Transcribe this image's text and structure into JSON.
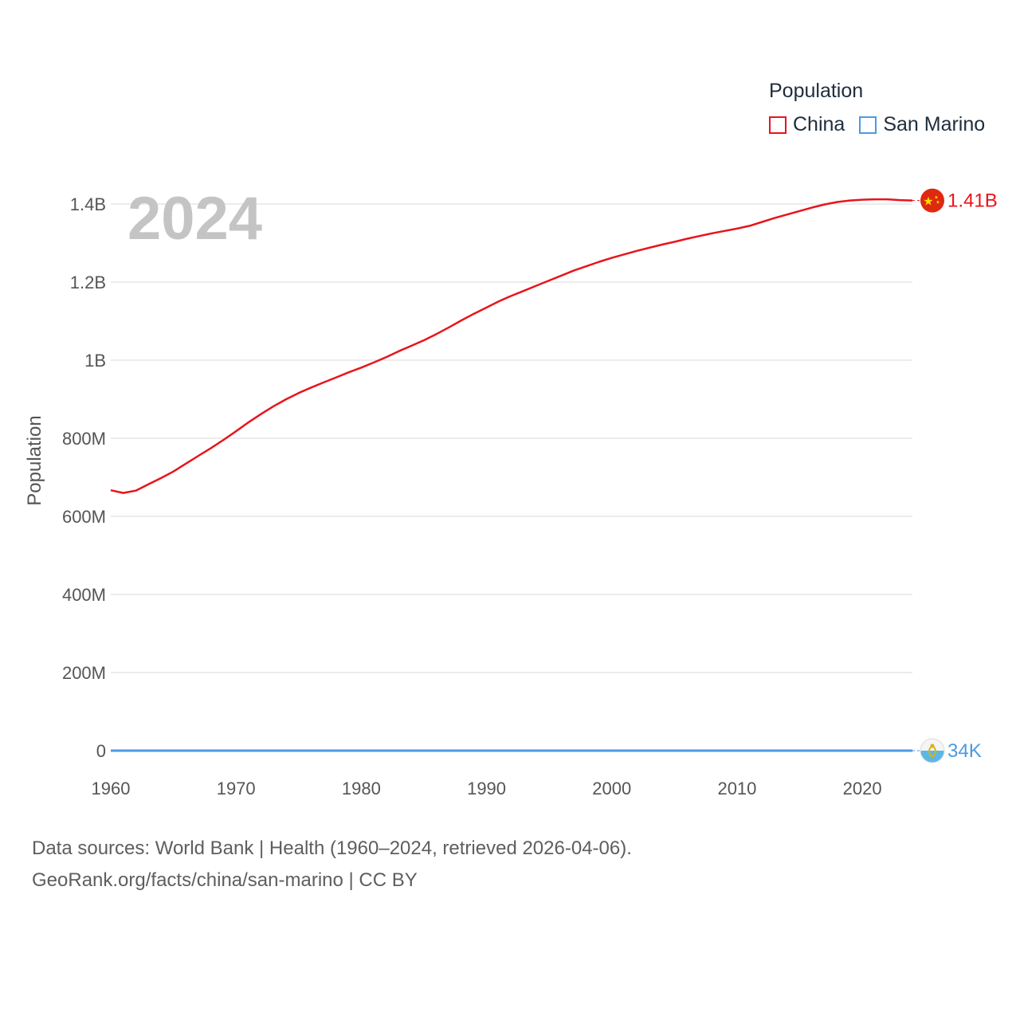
{
  "chart_data": {
    "type": "line",
    "title": "",
    "year_display": "2024",
    "ylabel": "Population",
    "xlabel": "",
    "legend_title": "Population",
    "legend_position": "top-right",
    "xlim": [
      1960,
      2024
    ],
    "ylim": [
      0,
      1400000000
    ],
    "x_ticks": [
      1960,
      1970,
      1980,
      1990,
      2000,
      2010,
      2020
    ],
    "x_tick_labels": [
      "1960",
      "1970",
      "1980",
      "1990",
      "2000",
      "2010",
      "2020"
    ],
    "y_ticks": [
      0,
      200000000,
      400000000,
      600000000,
      800000000,
      1000000000,
      1200000000,
      1400000000
    ],
    "y_tick_labels": [
      "0",
      "200M",
      "400M",
      "600M",
      "800M",
      "1B",
      "1.2B",
      "1.4B"
    ],
    "grid": true,
    "x": [
      1960,
      1961,
      1962,
      1963,
      1964,
      1965,
      1966,
      1967,
      1968,
      1969,
      1970,
      1971,
      1972,
      1973,
      1974,
      1975,
      1976,
      1977,
      1978,
      1979,
      1980,
      1981,
      1982,
      1983,
      1984,
      1985,
      1986,
      1987,
      1988,
      1989,
      1990,
      1991,
      1992,
      1993,
      1994,
      1995,
      1996,
      1997,
      1998,
      1999,
      2000,
      2001,
      2002,
      2003,
      2004,
      2005,
      2006,
      2007,
      2008,
      2009,
      2010,
      2011,
      2012,
      2013,
      2014,
      2015,
      2016,
      2017,
      2018,
      2019,
      2020,
      2021,
      2022,
      2023,
      2024
    ],
    "series": [
      {
        "name": "China",
        "color": "#e8141b",
        "end_label": "1.41B",
        "flag_icon": "china-flag-icon",
        "values": [
          667000000,
          660000000,
          666000000,
          682000000,
          698000000,
          715000000,
          735000000,
          755000000,
          775000000,
          796000000,
          818000000,
          841000000,
          862000000,
          882000000,
          900000000,
          916000000,
          930000000,
          943000000,
          956000000,
          969000000,
          981000000,
          994000000,
          1008000000,
          1023000000,
          1037000000,
          1051000000,
          1067000000,
          1084000000,
          1102000000,
          1119000000,
          1135000000,
          1151000000,
          1165000000,
          1178000000,
          1191000000,
          1204000000,
          1217000000,
          1230000000,
          1241000000,
          1252000000,
          1262000000,
          1271000000,
          1280000000,
          1288000000,
          1296000000,
          1303000000,
          1311000000,
          1318000000,
          1325000000,
          1331000000,
          1337000000,
          1344000000,
          1354000000,
          1364000000,
          1373000000,
          1382000000,
          1391000000,
          1399000000,
          1405000000,
          1409000000,
          1411000000,
          1412000000,
          1412000000,
          1410000000,
          1409000000
        ]
      },
      {
        "name": "San Marino",
        "color": "#4a9ae4",
        "end_label": "34K",
        "flag_icon": "san-marino-flag-icon",
        "values": [
          15000,
          15300,
          15700,
          16100,
          16500,
          16900,
          17200,
          17500,
          17800,
          18100,
          18500,
          18900,
          19200,
          19600,
          19900,
          20300,
          20600,
          20900,
          21200,
          21500,
          21900,
          22200,
          22400,
          22600,
          22800,
          23000,
          23100,
          23200,
          23300,
          23500,
          23700,
          24000,
          24400,
          24800,
          25300,
          25700,
          26100,
          26500,
          26900,
          27300,
          27600,
          27900,
          28300,
          28700,
          29100,
          29500,
          30000,
          30400,
          30800,
          31200,
          31500,
          31800,
          32100,
          32500,
          32800,
          33100,
          33300,
          33500,
          33700,
          33800,
          33900,
          34000,
          34000,
          34000,
          34000
        ]
      }
    ]
  },
  "footer": {
    "line1": "Data sources: World Bank | Health (1960–2024, retrieved 2026-04-06).",
    "line2": "GeoRank.org/facts/china/san-marino | CC BY"
  }
}
